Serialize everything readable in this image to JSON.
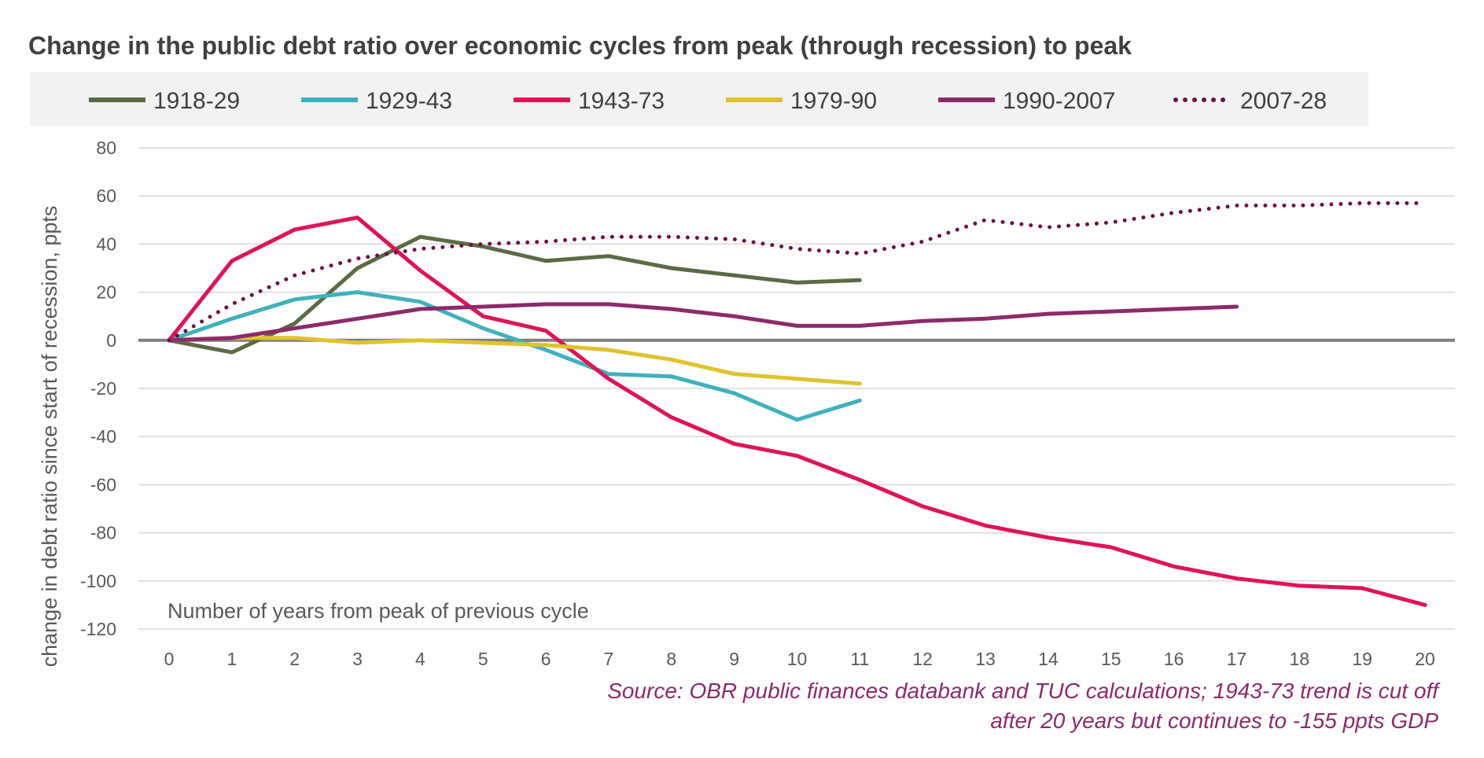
{
  "chart_data": {
    "type": "line",
    "title": "Change in the public debt ratio over economic cycles from peak (through recession) to peak",
    "ylabel": "change in debt ratio since start of recession, ppts",
    "xlabel": "Number of years from peak of previous cycle",
    "xlim": [
      0,
      20
    ],
    "ylim": [
      -120,
      80
    ],
    "x_ticks": [
      0,
      1,
      2,
      3,
      4,
      5,
      6,
      7,
      8,
      9,
      10,
      11,
      12,
      13,
      14,
      15,
      16,
      17,
      18,
      19,
      20
    ],
    "y_ticks": [
      80,
      60,
      40,
      20,
      0,
      -20,
      -40,
      -60,
      -80,
      -100,
      -120
    ],
    "grid": true,
    "legend_position": "top",
    "series": [
      {
        "name": "1918-29",
        "color": "#5b6b42",
        "style": "solid",
        "values": [
          0,
          -5,
          7,
          30,
          43,
          39,
          33,
          35,
          30,
          27,
          24,
          25
        ]
      },
      {
        "name": "1929-43",
        "color": "#3fb1bd",
        "style": "solid",
        "values": [
          0,
          9,
          17,
          20,
          16,
          5,
          -4,
          -14,
          -15,
          -22,
          -33,
          -25
        ]
      },
      {
        "name": "1943-73",
        "color": "#e0125a",
        "style": "solid",
        "values": [
          0,
          33,
          46,
          51,
          29,
          10,
          4,
          -16,
          -32,
          -43,
          -48,
          -58,
          -69,
          -77,
          -82,
          -86,
          -94,
          -99,
          -102,
          -103,
          -110
        ]
      },
      {
        "name": "1979-90",
        "color": "#e0c22c",
        "style": "solid",
        "values": [
          0,
          1,
          1,
          -1,
          0,
          -1,
          -2,
          -4,
          -8,
          -14,
          -16,
          -18
        ]
      },
      {
        "name": "1990-2007",
        "color": "#8c2a6b",
        "style": "solid",
        "values": [
          0,
          1,
          5,
          9,
          13,
          14,
          15,
          15,
          13,
          10,
          6,
          6,
          8,
          9,
          11,
          12,
          13,
          14
        ]
      },
      {
        "name": "2007-28",
        "color": "#6b0f45",
        "style": "dotted",
        "values": [
          0,
          15,
          27,
          34,
          38,
          40,
          41,
          43,
          43,
          42,
          38,
          36,
          41,
          50,
          47,
          49,
          53,
          56,
          56,
          57,
          57
        ]
      }
    ]
  },
  "source": {
    "line1": "Source: OBR public finances databank and TUC calculations; 1943-73 trend is cut off",
    "line2": "after 20 years but continues to -155 ppts GDP"
  }
}
